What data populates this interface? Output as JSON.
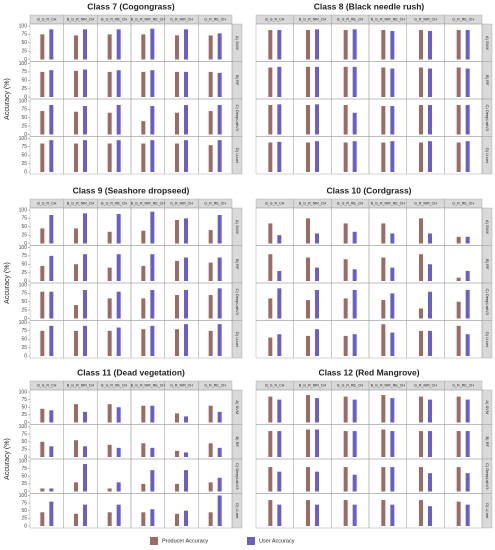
{
  "chart_data": [
    {
      "type": "bar",
      "title": "Class 7 (Cogongrass)",
      "y_label": "Accuracy (%)",
      "columns": [
        "B_G_R_CH",
        "B_G_R_NIR_CH",
        "B_G_R_RE_CH",
        "B_G_R_NIR_RE_CH",
        "G_R_NIR_CH",
        "G_R_RE_CH"
      ],
      "rows": [
        "A) SVM",
        "B) RF",
        "C) DeepLabV3",
        "D) U-net"
      ],
      "ylim": [
        0,
        100
      ],
      "yticks": [
        0,
        25,
        50,
        75,
        100
      ],
      "series": [
        {
          "name": "Producer Accuracy",
          "color": "#9c6b63",
          "values": [
            [
              75,
              72,
              75,
              75,
              72,
              72
            ],
            [
              75,
              78,
              75,
              75,
              75,
              75
            ],
            [
              70,
              68,
              65,
              40,
              65,
              70
            ],
            [
              85,
              85,
              85,
              85,
              85,
              80
            ]
          ]
        },
        {
          "name": "User Accuracy",
          "color": "#6a5fc9",
          "values": [
            [
              90,
              90,
              90,
              92,
              90,
              78
            ],
            [
              80,
              82,
              80,
              80,
              75,
              72
            ],
            [
              88,
              85,
              88,
              85,
              88,
              88
            ],
            [
              95,
              95,
              95,
              95,
              95,
              95
            ]
          ]
        }
      ]
    },
    {
      "type": "bar",
      "title": "Class 8 (Black needle rush)",
      "columns": [
        "B_G_R_CH",
        "B_G_R_NIR_CH",
        "B_G_R_RE_CH",
        "B_G_R_NIR_RE_CH",
        "G_R_NIR_CH",
        "G_R_RE_CH"
      ],
      "rows": [
        "A) SVM",
        "B) RF",
        "C) DeepLabV3",
        "D) U-net"
      ],
      "ylim": [
        0,
        100
      ],
      "series": [
        {
          "name": "Producer Accuracy",
          "color": "#9c6b63",
          "values": [
            [
              88,
              88,
              88,
              88,
              88,
              88
            ],
            [
              88,
              90,
              90,
              88,
              88,
              88
            ],
            [
              88,
              88,
              88,
              85,
              88,
              88
            ],
            [
              88,
              88,
              88,
              88,
              88,
              88
            ]
          ]
        },
        {
          "name": "User Accuracy",
          "color": "#6a5fc9",
          "values": [
            [
              88,
              90,
              90,
              85,
              85,
              88
            ],
            [
              90,
              90,
              90,
              85,
              85,
              85
            ],
            [
              90,
              90,
              65,
              85,
              88,
              88
            ],
            [
              90,
              92,
              92,
              92,
              92,
              92
            ]
          ]
        }
      ]
    },
    {
      "type": "bar",
      "title": "Class 9 (Seashore dropseed)",
      "y_label": "Accuracy (%)",
      "columns": [
        "B_G_R_CH",
        "B_G_R_NIR_CH",
        "B_G_R_RE_CH",
        "B_G_R_NIR_RE_CH",
        "G_R_NIR_CH",
        "G_R_RE_CH"
      ],
      "rows": [
        "A) SVM",
        "B) RF",
        "C) DeepLabV3",
        "D) U-net"
      ],
      "ylim": [
        0,
        100
      ],
      "yticks": [
        0,
        25,
        50,
        75,
        100
      ],
      "series": [
        {
          "name": "Producer Accuracy",
          "color": "#9c6b63",
          "values": [
            [
              45,
              45,
              35,
              38,
              70,
              40
            ],
            [
              45,
              50,
              40,
              45,
              60,
              55
            ],
            [
              80,
              40,
              60,
              60,
              70,
              70
            ],
            [
              75,
              75,
              75,
              80,
              80,
              75
            ]
          ]
        },
        {
          "name": "User Accuracy",
          "color": "#6a5fc9",
          "values": [
            [
              85,
              90,
              88,
              95,
              75,
              85
            ],
            [
              75,
              80,
              80,
              80,
              70,
              70
            ],
            [
              80,
              85,
              80,
              85,
              85,
              90
            ],
            [
              90,
              90,
              85,
              90,
              95,
              95
            ]
          ]
        }
      ]
    },
    {
      "type": "bar",
      "title": "Class 10 (Cordgrass)",
      "columns": [
        "B_G_R_CH",
        "B_G_R_NIR_CH",
        "B_G_R_RE_CH",
        "B_G_R_NIR_RE_CH",
        "G_R_NIR_CH",
        "G_R_RE_CH"
      ],
      "rows": [
        "A) SVM",
        "B) RF",
        "C) DeepLabV3",
        "D) U-net"
      ],
      "ylim": [
        0,
        100
      ],
      "series": [
        {
          "name": "Producer Accuracy",
          "color": "#9c6b63",
          "values": [
            [
              60,
              75,
              60,
              60,
              75,
              20
            ],
            [
              80,
              70,
              65,
              70,
              80,
              10
            ],
            [
              60,
              55,
              60,
              55,
              30,
              50
            ],
            [
              55,
              60,
              60,
              95,
              75,
              90
            ]
          ]
        },
        {
          "name": "User Accuracy",
          "color": "#6a5fc9",
          "values": [
            [
              25,
              30,
              35,
              30,
              30,
              20
            ],
            [
              30,
              40,
              35,
              40,
              50,
              30
            ],
            [
              90,
              85,
              85,
              75,
              80,
              85
            ],
            [
              65,
              80,
              65,
              70,
              75,
              65
            ]
          ]
        }
      ]
    },
    {
      "type": "bar",
      "title": "Class 11 (Dead vegetation)",
      "y_label": "Accuracy (%)",
      "columns": [
        "B_G_R_CH",
        "B_G_R_NIR_CH",
        "B_G_R_RE_CH",
        "B_G_R_NIR_RE_CH",
        "G_R_NIR_CH",
        "G_R_RE_CH"
      ],
      "rows": [
        "A) SVM",
        "B) RF",
        "C) DeepLabV3",
        "D) U-net"
      ],
      "ylim": [
        0,
        100
      ],
      "yticks": [
        0,
        25,
        50,
        75,
        100
      ],
      "series": [
        {
          "name": "Producer Accuracy",
          "color": "#9c6b63",
          "values": [
            [
              45,
              60,
              60,
              55,
              30,
              55
            ],
            [
              50,
              55,
              40,
              45,
              20,
              45
            ],
            [
              10,
              30,
              10,
              25,
              25,
              30
            ],
            [
              45,
              40,
              45,
              45,
              40,
              45
            ]
          ]
        },
        {
          "name": "User Accuracy",
          "color": "#6a5fc9",
          "values": [
            [
              40,
              35,
              50,
              55,
              20,
              35
            ],
            [
              35,
              35,
              30,
              30,
              15,
              30
            ],
            [
              10,
              90,
              30,
              70,
              70,
              45
            ],
            [
              80,
              70,
              70,
              55,
              50,
              100
            ]
          ]
        }
      ]
    },
    {
      "type": "bar",
      "title": "Class 12 (Red Mangrove)",
      "columns": [
        "B_G_R_CH",
        "B_G_R_NIR_CH",
        "B_G_R_RE_CH",
        "B_G_R_NIR_RE_CH",
        "G_R_NIR_CH",
        "G_R_RE_CH"
      ],
      "rows": [
        "A) SVM",
        "B) RF",
        "C) DeepLabV3",
        "D) U-net"
      ],
      "ylim": [
        0,
        100
      ],
      "series": [
        {
          "name": "Producer Accuracy",
          "color": "#9c6b63",
          "values": [
            [
              85,
              90,
              85,
              90,
              85,
              85
            ],
            [
              85,
              90,
              85,
              90,
              85,
              85
            ],
            [
              80,
              80,
              80,
              80,
              80,
              80
            ],
            [
              85,
              85,
              85,
              85,
              85,
              80
            ]
          ]
        },
        {
          "name": "User Accuracy",
          "color": "#6a5fc9",
          "values": [
            [
              75,
              80,
              75,
              80,
              75,
              75
            ],
            [
              85,
              90,
              85,
              85,
              85,
              85
            ],
            [
              65,
              65,
              55,
              80,
              60,
              60
            ],
            [
              70,
              70,
              70,
              70,
              65,
              70
            ]
          ]
        }
      ]
    }
  ]
}
